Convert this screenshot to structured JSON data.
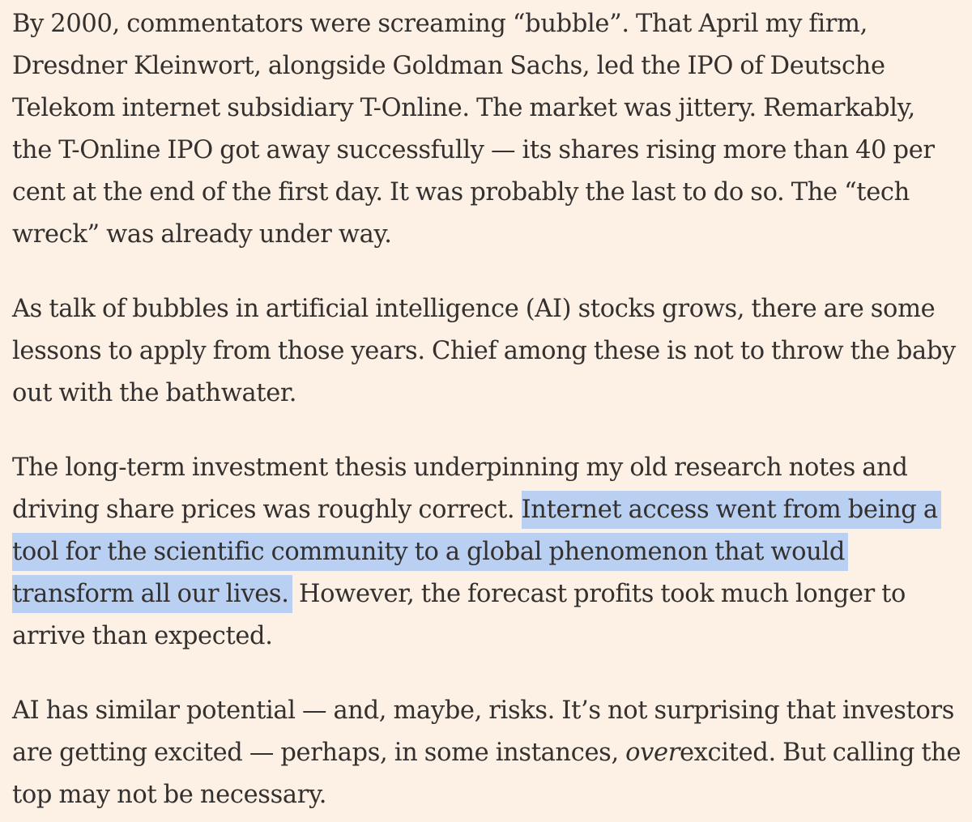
{
  "colors": {
    "page_background": "#fdf1e6",
    "text": "#33302e",
    "selection_highlight": "#b9d0f2"
  },
  "article": {
    "paragraphs": [
      {
        "text": "By 2000, commentators were screaming “bubble”. That April my firm, Dresdner Kleinwort, alongside Goldman Sachs, led the IPO of Deutsche Telekom internet subsidiary T-Online. The market was jittery. Remarkably, the T-Online IPO got away successfully — its shares rising more than 40 per cent at the end of the first day. It was probably the last to do so. The “tech wreck” was already under way."
      },
      {
        "text": "As talk of bubbles in artificial intelligence (AI) stocks grows, there are some lessons to apply from those years. Chief among these is not to throw the baby out with the bathwater."
      },
      {
        "before_highlight": "The long-term investment thesis underpinning my old research notes and driving share prices was roughly correct. ",
        "highlighted": "Internet access went from being a tool for the scientific community to a global phenomenon that would transform all our lives.",
        "after_highlight": " However, the forecast profits took much longer to arrive than expected."
      },
      {
        "before_emphasis": "AI has similar potential — and, maybe, risks. It’s not surprising that investors are getting excited — perhaps, in some instances, ",
        "emphasis": "over",
        "after_emphasis": "excited. But calling the top may not be necessary."
      }
    ]
  }
}
